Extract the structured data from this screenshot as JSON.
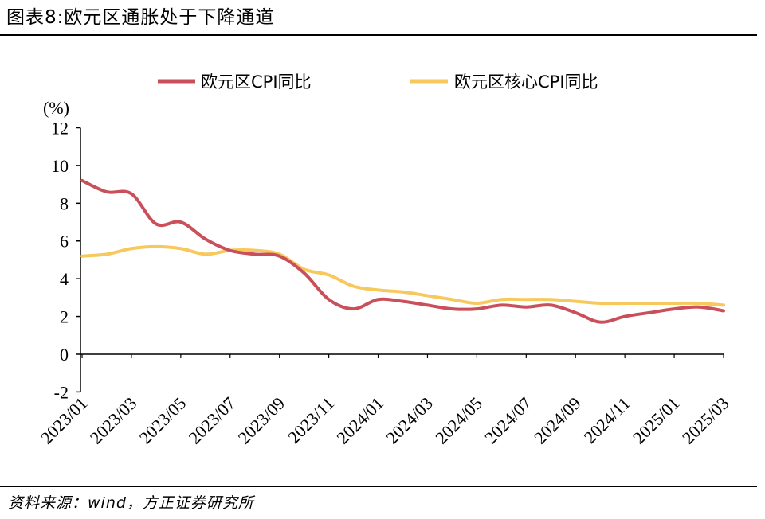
{
  "chart_data": {
    "type": "line",
    "title": "图表8:欧元区通胀处于下降通道",
    "xlabel": "",
    "ylabel": "(%)",
    "ylim": [
      -2,
      12
    ],
    "yticks": [
      12,
      10,
      8,
      6,
      4,
      2,
      0,
      -2
    ],
    "grid": false,
    "legend": "top",
    "x": [
      "2023/01",
      "2023/02",
      "2023/03",
      "2023/04",
      "2023/05",
      "2023/06",
      "2023/07",
      "2023/08",
      "2023/09",
      "2023/10",
      "2023/11",
      "2023/12",
      "2024/01",
      "2024/02",
      "2024/03",
      "2024/04",
      "2024/05",
      "2024/06",
      "2024/07",
      "2024/08",
      "2024/09",
      "2024/10",
      "2024/11",
      "2024/12",
      "2025/01",
      "2025/02",
      "2025/03"
    ],
    "series": [
      {
        "name": "欧元区CPI同比",
        "color": "#C9505B",
        "values": [
          9.2,
          8.6,
          8.5,
          6.9,
          7.0,
          6.1,
          5.5,
          5.3,
          5.2,
          4.3,
          2.9,
          2.4,
          2.9,
          2.8,
          2.6,
          2.4,
          2.4,
          2.6,
          2.5,
          2.6,
          2.2,
          1.7,
          2.0,
          2.2,
          2.4,
          2.5,
          2.3
        ]
      },
      {
        "name": "欧元区核心CPI同比",
        "color": "#F7C85C",
        "values": [
          5.2,
          5.3,
          5.6,
          5.7,
          5.6,
          5.3,
          5.5,
          5.5,
          5.3,
          4.5,
          4.2,
          3.6,
          3.4,
          3.3,
          3.1,
          2.9,
          2.7,
          2.9,
          2.9,
          2.9,
          2.8,
          2.7,
          2.7,
          2.7,
          2.7,
          2.7,
          2.6
        ]
      }
    ]
  },
  "footer": {
    "source": "资料来源：wind，方正证券研究所"
  }
}
